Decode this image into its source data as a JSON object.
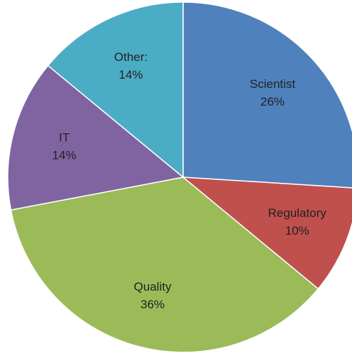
{
  "chart_data": {
    "type": "pie",
    "categories": [
      "Scientist",
      "Regulatory",
      "Quality",
      "IT",
      "Other:"
    ],
    "values": [
      26,
      10,
      36,
      14,
      14
    ],
    "value_labels": [
      "26%",
      "10%",
      "36%",
      "14%",
      "14%"
    ],
    "colors": [
      "#4f81bd",
      "#c0504d",
      "#9bbb59",
      "#8064a2",
      "#4bacc6"
    ]
  }
}
